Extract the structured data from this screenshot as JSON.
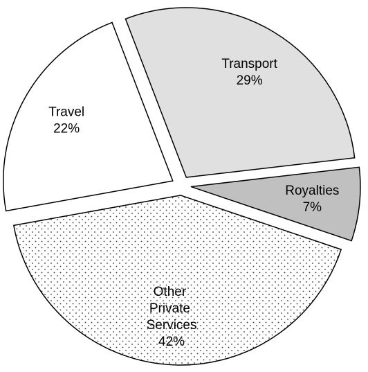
{
  "chart_data": {
    "type": "pie",
    "categories": [
      "Transport",
      "Royalties",
      "Other Private Services",
      "Travel"
    ],
    "values": [
      29,
      7,
      42,
      22
    ],
    "value_labels": [
      "29%",
      "7%",
      "42%",
      "22%"
    ],
    "colors": [
      "#e0e0e0",
      "#c0c0c0",
      "#ffffff",
      "#ffffff"
    ],
    "patterns": [
      null,
      null,
      "dots",
      null
    ],
    "exploded": true
  }
}
